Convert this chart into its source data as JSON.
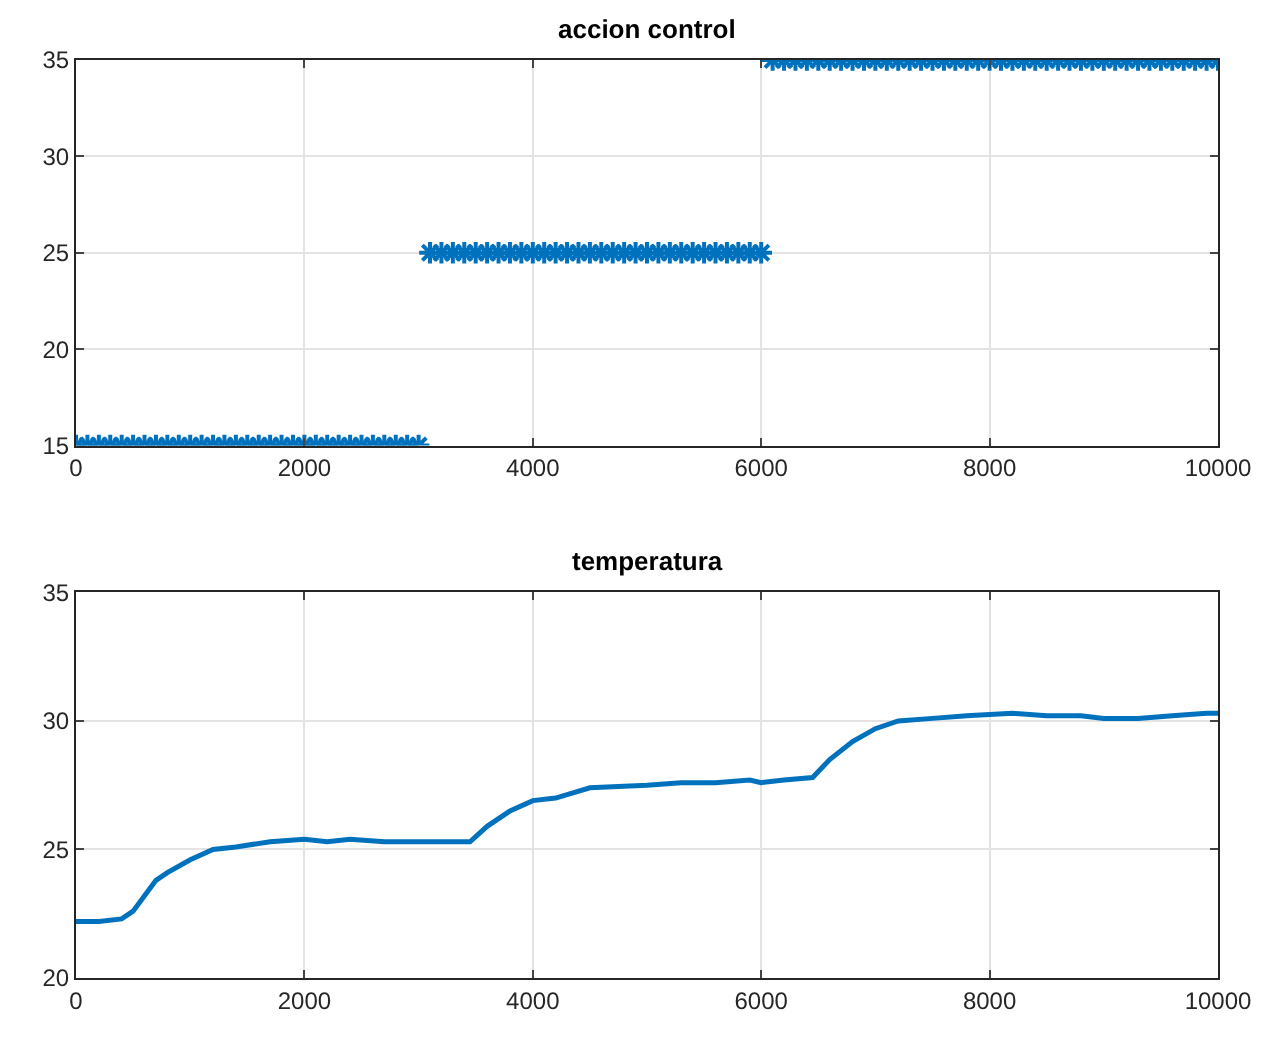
{
  "chart_data": [
    {
      "type": "scatter",
      "title": "accion control",
      "marker": "cross",
      "grid": true,
      "xlim": [
        0,
        10000
      ],
      "xticks": [
        0,
        2000,
        4000,
        6000,
        8000,
        10000
      ],
      "ylim": [
        15,
        35
      ],
      "yticks": [
        15,
        20,
        25,
        30,
        35
      ],
      "series": [
        {
          "color": "#0072bd",
          "x": [
            0,
            100,
            200,
            300,
            400,
            500,
            600,
            700,
            800,
            900,
            1000,
            1100,
            1200,
            1300,
            1400,
            1500,
            1600,
            1700,
            1800,
            1900,
            2000,
            2100,
            2200,
            2300,
            2400,
            2500,
            2600,
            2700,
            2800,
            2900,
            3000,
            3100,
            3200,
            3300,
            3400,
            3500,
            3600,
            3700,
            3800,
            3900,
            4000,
            4100,
            4200,
            4300,
            4400,
            4500,
            4600,
            4700,
            4800,
            4900,
            5000,
            5100,
            5200,
            5300,
            5400,
            5500,
            5600,
            5700,
            5800,
            5900,
            6000,
            6100,
            6200,
            6300,
            6400,
            6500,
            6600,
            6700,
            6800,
            6900,
            7000,
            7100,
            7200,
            7300,
            7400,
            7500,
            7600,
            7700,
            7800,
            7900,
            8000,
            8100,
            8200,
            8300,
            8400,
            8500,
            8600,
            8700,
            8800,
            8900,
            9000,
            9100,
            9200,
            9300,
            9400,
            9500,
            9600,
            9700,
            9800,
            9900,
            10000
          ],
          "values": [
            15,
            15,
            15,
            15,
            15,
            15,
            15,
            15,
            15,
            15,
            15,
            15,
            15,
            15,
            15,
            15,
            15,
            15,
            15,
            15,
            15,
            15,
            15,
            15,
            15,
            15,
            15,
            15,
            15,
            15,
            15,
            25,
            25,
            25,
            25,
            25,
            25,
            25,
            25,
            25,
            25,
            25,
            25,
            25,
            25,
            25,
            25,
            25,
            25,
            25,
            25,
            25,
            25,
            25,
            25,
            25,
            25,
            25,
            25,
            25,
            25,
            35,
            35,
            35,
            35,
            35,
            35,
            35,
            35,
            35,
            35,
            35,
            35,
            35,
            35,
            35,
            35,
            35,
            35,
            35,
            35,
            35,
            35,
            35,
            35,
            35,
            35,
            35,
            35,
            35,
            35,
            35,
            35,
            35,
            35,
            35,
            35,
            35,
            35,
            35,
            35
          ]
        }
      ]
    },
    {
      "type": "line",
      "title": "temperatura",
      "marker": "none",
      "grid": true,
      "xlim": [
        0,
        10000
      ],
      "xticks": [
        0,
        2000,
        4000,
        6000,
        8000,
        10000
      ],
      "ylim": [
        20,
        35
      ],
      "yticks": [
        20,
        25,
        30,
        35
      ],
      "series": [
        {
          "color": "#0072bd",
          "x": [
            0,
            200,
            400,
            500,
            600,
            700,
            800,
            1000,
            1200,
            1400,
            1700,
            2000,
            2200,
            2400,
            2700,
            3000,
            3300,
            3450,
            3600,
            3800,
            4000,
            4200,
            4500,
            5000,
            5300,
            5600,
            5900,
            6000,
            6200,
            6450,
            6600,
            6800,
            7000,
            7200,
            7500,
            7800,
            8200,
            8500,
            8800,
            9000,
            9300,
            9600,
            9900,
            10000
          ],
          "values": [
            22.2,
            22.2,
            22.3,
            22.6,
            23.2,
            23.8,
            24.1,
            24.6,
            25.0,
            25.1,
            25.3,
            25.4,
            25.3,
            25.4,
            25.3,
            25.3,
            25.3,
            25.3,
            25.9,
            26.5,
            26.9,
            27.0,
            27.4,
            27.5,
            27.6,
            27.6,
            27.7,
            27.6,
            27.7,
            27.8,
            28.5,
            29.2,
            29.7,
            30.0,
            30.1,
            30.2,
            30.3,
            30.2,
            30.2,
            30.1,
            30.1,
            30.2,
            30.3,
            30.3
          ]
        }
      ]
    }
  ]
}
